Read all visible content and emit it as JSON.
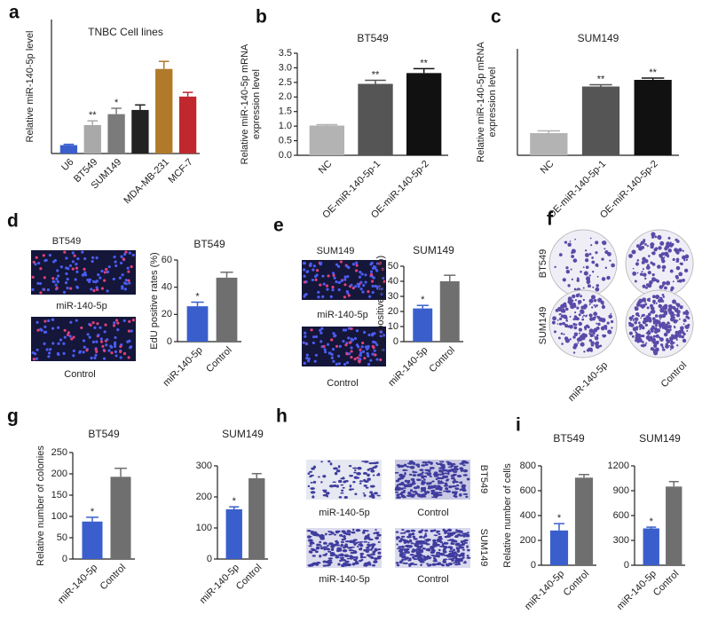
{
  "chart_data": [
    {
      "type": "bar",
      "title": "TNBC Cell lines",
      "ylabel": "Relative miR-140-5p level",
      "categories": [
        "U6",
        "BT549",
        "SUM149",
        null,
        "MDA-MB-231",
        "MCF-7"
      ],
      "values": [
        1,
        3.4,
        4.7,
        5.2,
        10.1,
        6.8
      ],
      "errors": [
        0.1,
        0.5,
        0.7,
        0.6,
        0.9,
        0.5
      ],
      "colors": [
        "#3a5fcd",
        "#a9a9a9",
        "#7b7b7b",
        "#222222",
        "#b07a2a",
        "#c0282e"
      ],
      "annotations": [
        {
          "index": 1,
          "text": "**"
        },
        {
          "index": 2,
          "text": "*"
        }
      ],
      "ylim": [
        0,
        16
      ]
    },
    {
      "type": "bar",
      "title": "BT549",
      "ylabel": [
        "Relative miR-140-5p mRNA",
        "expression level"
      ],
      "categories": [
        "NC",
        "OE-miR-140-5p-1",
        "OE-miR-140-5p-2"
      ],
      "values": [
        1.02,
        2.45,
        2.82
      ],
      "errors": [
        0.03,
        0.12,
        0.15
      ],
      "colors": [
        "#b3b3b3",
        "#555555",
        "#111111"
      ],
      "annotations": [
        {
          "index": 1,
          "text": "**"
        },
        {
          "index": 2,
          "text": "**"
        }
      ],
      "ylim": [
        0,
        3.5
      ],
      "yticks": [
        {
          "value": 0,
          "label": "0.0"
        },
        0.5,
        {
          "value": 1,
          "label": "1.0"
        },
        1.5,
        {
          "value": 2,
          "label": "2.0"
        },
        2.5,
        {
          "value": 3,
          "label": "3.0"
        },
        3.5
      ]
    },
    {
      "type": "bar",
      "title": "SUM149",
      "ylabel": [
        "Relative miR-140-5p mRNA",
        "expression level"
      ],
      "categories": [
        "NC",
        "OE-miR-140-5p-1",
        "OE-miR-140-5p-2"
      ],
      "values": [
        1,
        3.1,
        3.4
      ],
      "errors": [
        0.1,
        0.08,
        0.08
      ],
      "colors": [
        "#b3b3b3",
        "#555555",
        "#111111"
      ],
      "annotations": [
        {
          "index": 1,
          "text": "**"
        },
        {
          "index": 2,
          "text": "**"
        }
      ],
      "ylim": [
        0,
        4.8
      ]
    },
    {
      "type": "bar",
      "title": "BT549",
      "ylabel": "EdU positive rates (%)",
      "categories": [
        "miR-140-5p",
        "Control"
      ],
      "values": [
        26,
        47
      ],
      "errors": [
        3,
        4
      ],
      "colors": [
        "#3a5fcd",
        "#6f6f6f"
      ],
      "annotations": [
        {
          "index": 0,
          "text": "*"
        }
      ],
      "ylim": [
        0,
        60
      ],
      "yticks": [
        0,
        20,
        40,
        60
      ]
    },
    {
      "type": "bar",
      "title": "SUM149",
      "ylabel": "EdU positive rates (%)",
      "categories": [
        "miR-140-5p",
        "Control"
      ],
      "values": [
        22,
        40
      ],
      "errors": [
        2,
        4
      ],
      "colors": [
        "#3a5fcd",
        "#6f6f6f"
      ],
      "annotations": [
        {
          "index": 0,
          "text": "*"
        }
      ],
      "ylim": [
        0,
        50
      ],
      "yticks": [
        0,
        10,
        20,
        30,
        40,
        50
      ]
    },
    {
      "type": "bar",
      "title": "BT549",
      "ylabel": "Relative number of colonies",
      "categories": [
        "miR-140-5p",
        "Control"
      ],
      "values": [
        88,
        193
      ],
      "errors": [
        10,
        20
      ],
      "colors": [
        "#3a5fcd",
        "#6f6f6f"
      ],
      "annotations": [
        {
          "index": 0,
          "text": "*"
        }
      ],
      "ylim": [
        0,
        250
      ],
      "yticks": [
        0,
        50,
        100,
        150,
        200,
        250
      ]
    },
    {
      "type": "bar",
      "title": "SUM149",
      "categories": [
        "miR-140-5p",
        "Control"
      ],
      "values": [
        160,
        260
      ],
      "errors": [
        8,
        15
      ],
      "colors": [
        "#3a5fcd",
        "#6f6f6f"
      ],
      "annotations": [
        {
          "index": 0,
          "text": "*"
        }
      ],
      "ylim": [
        0,
        300
      ],
      "yticks": [
        0,
        100,
        200,
        300
      ]
    },
    {
      "type": "bar",
      "title": "BT549",
      "ylabel": "Relative number of cells",
      "categories": [
        "miR-140-5p",
        "Control"
      ],
      "values": [
        280,
        705
      ],
      "errors": [
        55,
        25
      ],
      "colors": [
        "#3a5fcd",
        "#6f6f6f"
      ],
      "annotations": [
        {
          "index": 0,
          "text": "*"
        }
      ],
      "ylim": [
        0,
        800
      ],
      "yticks": [
        0,
        200,
        400,
        600,
        800
      ]
    },
    {
      "type": "bar",
      "title": "SUM149",
      "categories": [
        "miR-140-5p",
        "Control"
      ],
      "values": [
        445,
        950
      ],
      "errors": [
        15,
        60
      ],
      "colors": [
        "#3a5fcd",
        "#6f6f6f"
      ],
      "annotations": [
        {
          "index": 0,
          "text": "*"
        }
      ],
      "ylim": [
        0,
        1200
      ],
      "yticks": [
        0,
        300,
        600,
        900,
        1200
      ]
    }
  ],
  "panel_letters": [
    "a",
    "b",
    "c",
    "d",
    "e",
    "f",
    "g",
    "h",
    "i"
  ],
  "image_captions": {
    "d": [
      "BT549",
      "miR-140-5p",
      "Control"
    ],
    "e": [
      "SUM149",
      "miR-140-5p",
      "Control"
    ],
    "f": [
      "BT549",
      "SUM149",
      "miR-140-5p",
      "Control"
    ],
    "h": [
      "miR-140-5p",
      "Control",
      "miR-140-5p",
      "Control",
      "BT549",
      "SUM149"
    ]
  }
}
